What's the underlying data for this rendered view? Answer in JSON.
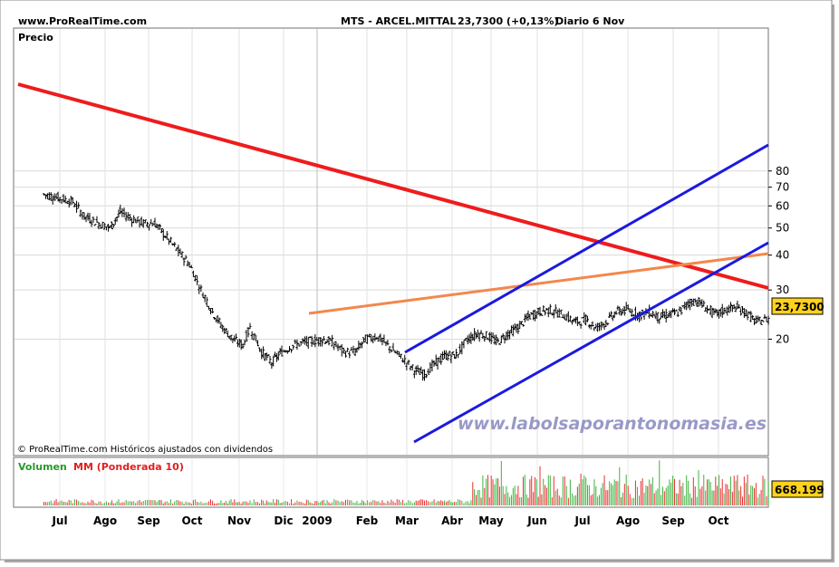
{
  "header": {
    "site": "www.ProRealTime.com",
    "instrument": "MTS - ARCEL.MITTAL",
    "last": "23,7300 (+0,13%)",
    "period": "Diario  6 Nov"
  },
  "panel_label": "Precio",
  "copyright": "© ProRealTime.com  Históricos ajustados con dividendos",
  "watermark": "www.labolsaporantonomasia.es",
  "price_badge": "23,7300",
  "volume": {
    "label_volume": "Volumen",
    "label_ma": "MM (Ponderada 10)",
    "badge": "668.199"
  },
  "colors": {
    "price_bar": "#000000",
    "resistance_line": "#ee1c1c",
    "neckline": "#f4874b",
    "channel": "#1a1ae0",
    "volume_up": "#3fb33f",
    "volume_down": "#e83030",
    "watermark": "#9999c8"
  },
  "chart_data": {
    "type": "ohlc",
    "scale": "log",
    "y_ticks": [
      20,
      30,
      40,
      50,
      60,
      70,
      80
    ],
    "x_ticks": [
      "Jul",
      "Ago",
      "Sep",
      "Oct",
      "Nov",
      "Dic",
      "2009",
      "Feb",
      "Mar",
      "Abr",
      "May",
      "Jun",
      "Jul",
      "Ago",
      "Sep",
      "Oct"
    ],
    "last_close": 23.73,
    "series": [
      {
        "name": "Precio",
        "points": [
          [
            "2008-06-20",
            66
          ],
          [
            "2008-07-01",
            64
          ],
          [
            "2008-07-10",
            62
          ],
          [
            "2008-07-18",
            55
          ],
          [
            "2008-07-28",
            52
          ],
          [
            "2008-08-05",
            50
          ],
          [
            "2008-08-12",
            57
          ],
          [
            "2008-08-20",
            54
          ],
          [
            "2008-08-28",
            52
          ],
          [
            "2008-09-05",
            52
          ],
          [
            "2008-09-12",
            47
          ],
          [
            "2008-09-20",
            42
          ],
          [
            "2008-09-29",
            37
          ],
          [
            "2008-10-07",
            30
          ],
          [
            "2008-10-15",
            25
          ],
          [
            "2008-10-22",
            22
          ],
          [
            "2008-10-29",
            20
          ],
          [
            "2008-11-05",
            19
          ],
          [
            "2008-11-10",
            22
          ],
          [
            "2008-11-18",
            18
          ],
          [
            "2008-11-25",
            16.5
          ],
          [
            "2008-12-02",
            18
          ],
          [
            "2008-12-10",
            19
          ],
          [
            "2008-12-18",
            19.5
          ],
          [
            "2008-12-30",
            20
          ],
          [
            "2009-01-06",
            19.5
          ],
          [
            "2009-01-14",
            18
          ],
          [
            "2009-01-22",
            18
          ],
          [
            "2009-01-29",
            20
          ],
          [
            "2009-02-06",
            20.5
          ],
          [
            "2009-02-16",
            18.5
          ],
          [
            "2009-02-24",
            17
          ],
          [
            "2009-03-04",
            15.5
          ],
          [
            "2009-03-11",
            15
          ],
          [
            "2009-03-19",
            16.5
          ],
          [
            "2009-03-26",
            17.5
          ],
          [
            "2009-04-02",
            17.5
          ],
          [
            "2009-04-10",
            20
          ],
          [
            "2009-04-17",
            21
          ],
          [
            "2009-04-24",
            20.5
          ],
          [
            "2009-05-01",
            19.5
          ],
          [
            "2009-05-08",
            21
          ],
          [
            "2009-05-15",
            22
          ],
          [
            "2009-05-22",
            24
          ],
          [
            "2009-05-29",
            25
          ],
          [
            "2009-06-05",
            25.5
          ],
          [
            "2009-06-15",
            24.5
          ],
          [
            "2009-06-24",
            23
          ],
          [
            "2009-07-01",
            23.5
          ],
          [
            "2009-07-08",
            22
          ],
          [
            "2009-07-15",
            23
          ],
          [
            "2009-07-22",
            25
          ],
          [
            "2009-07-29",
            25.5
          ],
          [
            "2009-08-07",
            24.5
          ],
          [
            "2009-08-14",
            25
          ],
          [
            "2009-08-21",
            24
          ],
          [
            "2009-08-28",
            24.5
          ],
          [
            "2009-09-04",
            25
          ],
          [
            "2009-09-10",
            27
          ],
          [
            "2009-09-16",
            27.5
          ],
          [
            "2009-09-22",
            26
          ],
          [
            "2009-09-29",
            24.5
          ],
          [
            "2009-10-06",
            25.5
          ],
          [
            "2009-10-13",
            26
          ],
          [
            "2009-10-20",
            25
          ],
          [
            "2009-10-27",
            23
          ],
          [
            "2009-11-02",
            23.5
          ],
          [
            "2009-11-06",
            23.73
          ]
        ]
      },
      {
        "name": "Volumen",
        "avg": 0.3
      }
    ]
  }
}
